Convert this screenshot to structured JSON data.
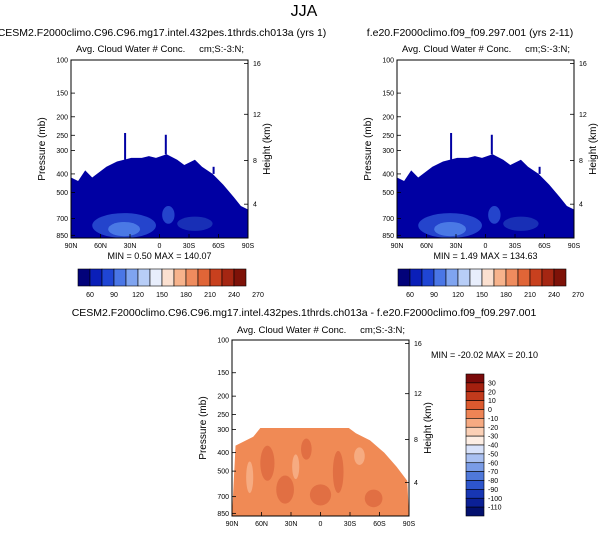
{
  "page_title": "JJA",
  "colors": {
    "background": "#ffffff",
    "frame": "#000000",
    "cloud_fill": "#0000a3",
    "cloud_light": "#2d55d6",
    "diff_fill": "#f08a55",
    "diff_dark": "#d65a34",
    "diff_light": "#f7b38c"
  },
  "chart_data": [
    {
      "type": "heatmap",
      "id": "panel-1",
      "title": "CESM2.F2000climo.C96.C96.mg17.intel.432pes.1thrds.ch013a (yrs 1)",
      "variable_label": "Avg. Cloud Water # Conc.",
      "units_label": "cm;S:-3:N;",
      "ylabel": "Pressure (mb)",
      "ylabel_right": "Height (km)",
      "x_ticks": [
        "90N",
        "60N",
        "30N",
        "0",
        "30S",
        "60S",
        "90S"
      ],
      "y_ticks": [
        "100",
        "150",
        "200",
        "250",
        "300",
        "400",
        "500",
        "700",
        "850"
      ],
      "y_ticks_right": [
        "16",
        "12",
        "8",
        "4"
      ],
      "min_max_text": "MIN =   0.50   MAX = 140.07",
      "stats": {
        "min": 0.5,
        "max": 140.07
      },
      "colorbar": {
        "labels": [
          "60",
          "90",
          "120",
          "150",
          "180",
          "210",
          "240",
          "270"
        ],
        "colors": [
          "#02027a",
          "#0a1fb8",
          "#1f45d4",
          "#4a76e6",
          "#7fa4f0",
          "#b7cdf7",
          "#e8eefc",
          "#fbe0d0",
          "#f7b38c",
          "#ef8c5e",
          "#e06537",
          "#c8401e",
          "#a52612",
          "#7e1208"
        ]
      }
    },
    {
      "type": "heatmap",
      "id": "panel-2",
      "title": "f.e20.F2000climo.f09_f09.297.001 (yrs 2-11)",
      "variable_label": "Avg. Cloud Water # Conc.",
      "units_label": "cm;S:-3:N;",
      "ylabel": "Pressure (mb)",
      "ylabel_right": "Height (km)",
      "x_ticks": [
        "90N",
        "60N",
        "30N",
        "0",
        "30S",
        "60S",
        "90S"
      ],
      "y_ticks": [
        "100",
        "150",
        "200",
        "250",
        "300",
        "400",
        "500",
        "700",
        "850"
      ],
      "y_ticks_right": [
        "16",
        "12",
        "8",
        "4"
      ],
      "min_max_text": "MIN =   1.49   MAX = 134.63",
      "stats": {
        "min": 1.49,
        "max": 134.63
      },
      "colorbar": {
        "labels": [
          "60",
          "90",
          "120",
          "150",
          "180",
          "210",
          "240",
          "270"
        ],
        "colors": [
          "#02027a",
          "#0a1fb8",
          "#1f45d4",
          "#4a76e6",
          "#7fa4f0",
          "#b7cdf7",
          "#e8eefc",
          "#fbe0d0",
          "#f7b38c",
          "#ef8c5e",
          "#e06537",
          "#c8401e",
          "#a52612",
          "#7e1208"
        ]
      }
    },
    {
      "type": "heatmap",
      "id": "panel-diff",
      "title": "CESM2.F2000climo.C96.C96.mg17.intel.432pes.1thrds.ch013a - f.e20.F2000climo.f09_f09.297.001",
      "variable_label": "Avg. Cloud Water # Conc.",
      "units_label": "cm;S:-3:N;",
      "ylabel": "Pressure (mb)",
      "ylabel_right": "Height (km)",
      "x_ticks": [
        "90N",
        "60N",
        "30N",
        "0",
        "30S",
        "60S",
        "90S"
      ],
      "y_ticks": [
        "100",
        "150",
        "200",
        "250",
        "300",
        "400",
        "500",
        "700",
        "850"
      ],
      "y_ticks_right": [
        "16",
        "12",
        "8",
        "4"
      ],
      "min_max_text": "MIN = -20.02   MAX =  20.10",
      "stats": {
        "min": -20.02,
        "max": 20.1
      },
      "colorbar": {
        "labels": [
          "30",
          "20",
          "10",
          "0",
          "-10",
          "-20",
          "-30",
          "-40",
          "-50",
          "-60",
          "-70",
          "-80",
          "-90",
          "-100",
          "-110"
        ],
        "colors": [
          "#7a0a0a",
          "#a4200f",
          "#c23a1c",
          "#dc5a2f",
          "#ee8455",
          "#f6aa82",
          "#fbd0b6",
          "#fdeee4",
          "#d8e2fa",
          "#a9c0f1",
          "#7a9ce6",
          "#4f78da",
          "#2d55cc",
          "#1736b4",
          "#0b2096",
          "#03106e"
        ]
      }
    }
  ]
}
